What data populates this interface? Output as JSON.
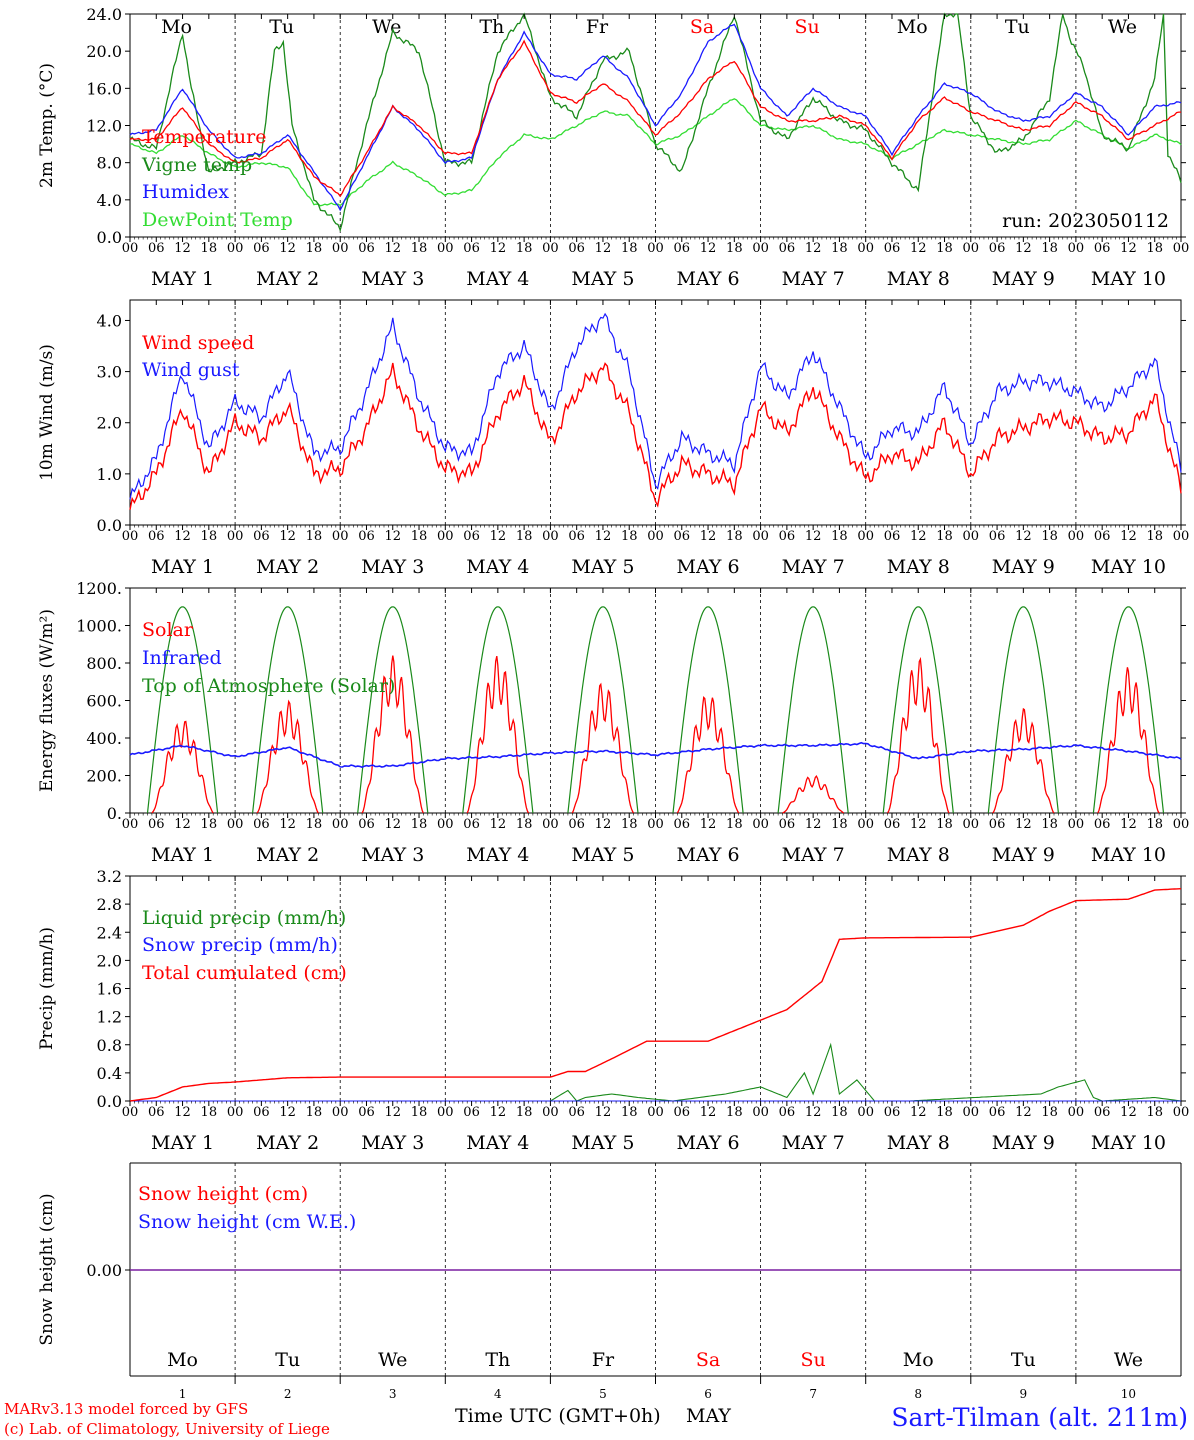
{
  "days": [
    "Mo",
    "Tu",
    "We",
    "Th",
    "Fr",
    "Sa",
    "Su",
    "Mo",
    "Tu",
    "We"
  ],
  "weekend_days": [
    5,
    6
  ],
  "date_labels": [
    "MAY  1",
    "MAY  2",
    "MAY  3",
    "MAY  4",
    "MAY  5",
    "MAY  6",
    "MAY  7",
    "MAY  8",
    "MAY  9",
    "MAY 10"
  ],
  "hour_ticks": [
    "00",
    "06",
    "12",
    "18"
  ],
  "bottom_day_numbers": [
    "1",
    "2",
    "3",
    "4",
    "5",
    "6",
    "7",
    "8",
    "9",
    "10"
  ],
  "run_label": "run: 2023050112",
  "footer": {
    "model": "MARv3.13 model forced by GFS",
    "copyright": "(c) Lab. of Climatology, University of Liege",
    "time_axis": "Time UTC (GMT+0h)",
    "month": "MAY",
    "station": "Sart-Tilman (alt. 211m)"
  },
  "colors": {
    "red": "#ff0000",
    "green": "#1a8a1a",
    "blue": "#1a1aff",
    "lightgreen": "#33dd33",
    "purple": "#7a1fa0",
    "weekend": "#ff0000"
  },
  "chart_data": [
    {
      "type": "line",
      "ylabel": "2m Temp. (°C)",
      "ylim": [
        0,
        24
      ],
      "yticks": [
        "0.0",
        "4.0",
        "8.0",
        "12.0",
        "16.0",
        "20.0",
        "24.0"
      ],
      "x_units": "hours since May 1 00 UTC",
      "series": [
        {
          "name": "Temperature",
          "color": "red",
          "x": [
            0,
            6,
            12,
            18,
            24,
            30,
            36,
            42,
            48,
            54,
            60,
            66,
            72,
            78,
            84,
            90,
            96,
            102,
            108,
            114,
            120,
            126,
            132,
            138,
            144,
            150,
            156,
            162,
            168,
            174,
            180,
            186,
            192,
            198,
            204,
            210,
            216,
            222,
            228,
            234,
            240
          ],
          "values": [
            10.5,
            10.5,
            14,
            10,
            8,
            8.5,
            10.5,
            6.5,
            4.5,
            9,
            14,
            12,
            9,
            9,
            17,
            21,
            15.5,
            14.5,
            16.5,
            14.5,
            11,
            13.5,
            17,
            19,
            14,
            12.5,
            12.5,
            13,
            12,
            8.5,
            12.5,
            15,
            13.5,
            12.5,
            11.5,
            12,
            14.5,
            13,
            10.5,
            12,
            13.5
          ]
        },
        {
          "name": "Vigne temp",
          "color": "green",
          "x": [
            0,
            6,
            10,
            12,
            14,
            18,
            24,
            30,
            33,
            35,
            37,
            42,
            48,
            54,
            60,
            66,
            72,
            78,
            84,
            90,
            96,
            102,
            108,
            114,
            120,
            126,
            132,
            138,
            144,
            150,
            156,
            162,
            168,
            174,
            180,
            186,
            189,
            192,
            198,
            204,
            210,
            213,
            215,
            218,
            222,
            228,
            234,
            236,
            237,
            240
          ],
          "values": [
            10.5,
            9.5,
            18,
            22,
            16,
            7,
            8,
            9,
            20,
            21,
            12,
            4,
            1,
            12,
            22,
            20,
            8,
            8,
            20,
            24,
            15,
            13,
            19,
            20,
            10,
            7,
            16,
            24,
            12.5,
            10.5,
            15,
            12.5,
            11.5,
            8,
            5,
            24,
            24,
            13,
            9,
            10.5,
            15,
            24,
            21,
            18,
            11,
            9.5,
            17,
            24,
            9,
            6
          ]
        },
        {
          "name": "Humidex",
          "color": "blue",
          "x": [
            0,
            6,
            12,
            18,
            24,
            30,
            36,
            42,
            48,
            54,
            60,
            66,
            72,
            78,
            84,
            90,
            96,
            102,
            108,
            114,
            120,
            126,
            132,
            138,
            144,
            150,
            156,
            162,
            168,
            174,
            180,
            186,
            192,
            198,
            204,
            210,
            216,
            222,
            228,
            234,
            240
          ],
          "values": [
            11,
            11.5,
            16,
            11.5,
            8.5,
            9,
            11,
            7,
            3,
            8.5,
            14,
            11.5,
            8,
            8.5,
            17,
            22,
            17.5,
            17,
            19.5,
            17,
            12,
            15.5,
            21,
            23,
            16,
            13,
            16,
            14,
            13,
            9,
            13,
            16.5,
            15.5,
            13.5,
            12.5,
            13,
            15.5,
            14,
            11,
            14,
            14.5
          ]
        },
        {
          "name": "DewPoint Temp",
          "color": "lightgreen",
          "x": [
            0,
            6,
            12,
            18,
            24,
            30,
            36,
            42,
            48,
            54,
            60,
            66,
            72,
            78,
            84,
            90,
            96,
            102,
            108,
            114,
            120,
            126,
            132,
            138,
            144,
            150,
            156,
            162,
            168,
            174,
            180,
            186,
            192,
            198,
            204,
            210,
            216,
            222,
            228,
            234,
            240
          ],
          "values": [
            10,
            9,
            11,
            9,
            7.5,
            8,
            7.5,
            3.5,
            3.5,
            6,
            8,
            6.5,
            4.5,
            5,
            8.5,
            11,
            10.5,
            12,
            13.5,
            13,
            10,
            11,
            13,
            15,
            12,
            11.5,
            12,
            10.5,
            10,
            8.5,
            10,
            11.5,
            11,
            10.5,
            10,
            10.5,
            12.5,
            11,
            9.5,
            11,
            10
          ]
        }
      ]
    },
    {
      "type": "line",
      "ylabel": "10m Wind (m/s)",
      "ylim": [
        0,
        4.4
      ],
      "yticks": [
        "0.0",
        "1.0",
        "2.0",
        "3.0",
        "4.0"
      ],
      "series": [
        {
          "name": "Wind speed",
          "color": "red",
          "x": [
            0,
            6,
            12,
            18,
            24,
            30,
            36,
            42,
            48,
            54,
            60,
            66,
            72,
            78,
            84,
            90,
            96,
            102,
            108,
            114,
            120,
            126,
            132,
            138,
            144,
            150,
            156,
            162,
            168,
            174,
            180,
            186,
            192,
            198,
            204,
            210,
            216,
            222,
            228,
            234,
            240
          ],
          "values": [
            0.3,
            1,
            2.3,
            1,
            2,
            1.7,
            2.3,
            1,
            1.1,
            1.9,
            3,
            1.9,
            1.1,
            1,
            2.2,
            2.8,
            1.6,
            2.6,
            3.1,
            2.2,
            0.5,
            1.2,
            1,
            0.8,
            2.3,
            1.8,
            2.7,
            1.7,
            0.9,
            1.4,
            1.2,
            2,
            1,
            1.7,
            1.9,
            2.1,
            2,
            1.7,
            1.8,
            2.5,
            0.7
          ]
        },
        {
          "name": "Wind gust",
          "color": "blue",
          "x": [
            0,
            6,
            12,
            18,
            24,
            30,
            36,
            42,
            48,
            54,
            60,
            66,
            72,
            78,
            84,
            90,
            96,
            102,
            108,
            114,
            120,
            126,
            132,
            138,
            144,
            150,
            156,
            162,
            168,
            174,
            180,
            186,
            192,
            198,
            204,
            210,
            216,
            222,
            228,
            234,
            240
          ],
          "values": [
            0.5,
            1.3,
            3,
            1.5,
            2.4,
            2.1,
            3,
            1.4,
            1.5,
            2.6,
            3.9,
            2.5,
            1.5,
            1.4,
            3,
            3.5,
            2.2,
            3.5,
            4.1,
            3,
            0.8,
            1.7,
            1.4,
            1.2,
            3.1,
            2.5,
            3.4,
            2.3,
            1.3,
            1.9,
            1.8,
            2.7,
            1.6,
            2.6,
            2.8,
            2.8,
            2.6,
            2.3,
            2.7,
            3.2,
            1.1
          ]
        }
      ]
    },
    {
      "type": "line",
      "ylabel": "Energy fluxes (W/m²)",
      "ylim": [
        0,
        1200
      ],
      "yticks": [
        "0.",
        "200.",
        "400.",
        "600.",
        "800.",
        "1000.",
        "1200."
      ],
      "series": [
        {
          "name": "Solar",
          "color": "red",
          "peaks": [
            500,
            600,
            840,
            840,
            700,
            640,
            200,
            830,
            560,
            780
          ]
        },
        {
          "name": "Infrared",
          "color": "blue",
          "x": [
            0,
            12,
            24,
            36,
            48,
            60,
            72,
            84,
            96,
            108,
            120,
            132,
            144,
            156,
            168,
            180,
            192,
            204,
            216,
            228,
            240
          ],
          "values": [
            310,
            360,
            300,
            350,
            250,
            250,
            290,
            300,
            320,
            330,
            310,
            340,
            360,
            360,
            370,
            290,
            330,
            340,
            360,
            330,
            290
          ]
        },
        {
          "name": "Top of Atmosphere (Solar)",
          "color": "green",
          "peak": 1100
        }
      ]
    },
    {
      "type": "line",
      "ylabel": "Precip (mm/h)",
      "ylim": [
        0,
        3.2
      ],
      "yticks": [
        "0.0",
        "0.4",
        "0.8",
        "1.2",
        "1.6",
        "2.0",
        "2.4",
        "2.8",
        "3.2"
      ],
      "series": [
        {
          "name": "Liquid precip (mm/h)",
          "color": "green",
          "x": [
            0,
            96,
            100,
            102,
            104,
            110,
            116,
            124,
            136,
            144,
            150,
            154,
            156,
            160,
            162,
            166,
            170,
            174,
            178,
            208,
            212,
            218,
            220,
            222,
            234,
            240
          ],
          "values": [
            0,
            0,
            0.15,
            0,
            0.05,
            0.1,
            0.05,
            0,
            0.1,
            0.2,
            0.05,
            0.4,
            0.1,
            0.8,
            0.1,
            0.3,
            0,
            0,
            0,
            0.1,
            0.2,
            0.3,
            0.05,
            0,
            0.05,
            0
          ]
        },
        {
          "name": "Snow precip (mm/h)",
          "color": "blue",
          "x": [
            0,
            240
          ],
          "values": [
            0,
            0
          ]
        },
        {
          "name": "Total cumulated (cm)",
          "color": "red",
          "x": [
            0,
            6,
            12,
            18,
            24,
            36,
            48,
            96,
            100,
            104,
            110,
            118,
            124,
            132,
            138,
            144,
            150,
            154,
            158,
            162,
            168,
            192,
            204,
            210,
            216,
            228,
            234,
            240
          ],
          "values": [
            0,
            0.05,
            0.2,
            0.25,
            0.27,
            0.33,
            0.34,
            0.34,
            0.42,
            0.42,
            0.6,
            0.85,
            0.85,
            0.85,
            1,
            1.15,
            1.3,
            1.5,
            1.7,
            2.3,
            2.32,
            2.33,
            2.5,
            2.7,
            2.85,
            2.87,
            3,
            3.02
          ]
        }
      ]
    },
    {
      "type": "line",
      "ylabel": "Snow height (cm)",
      "yticks": [
        "0.00"
      ],
      "series": [
        {
          "name": "Snow height (cm)",
          "color": "red",
          "x": [
            0,
            240
          ],
          "values": [
            0,
            0
          ]
        },
        {
          "name": "Snow height (cm W.E.)",
          "color": "blue",
          "x": [
            0,
            240
          ],
          "values": [
            0,
            0
          ]
        }
      ]
    }
  ]
}
